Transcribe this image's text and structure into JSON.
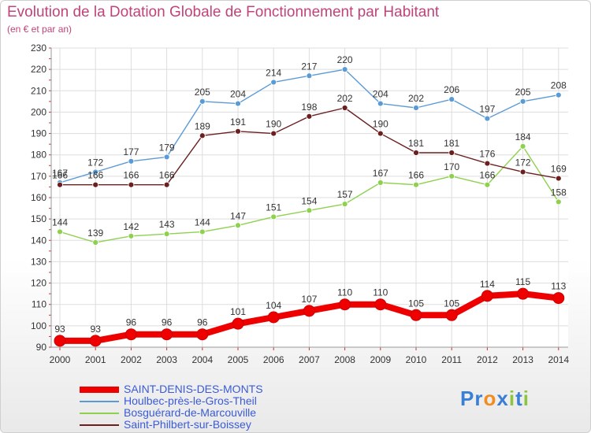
{
  "chart_data": {
    "type": "line",
    "title": "Evolution de la Dotation Globale de Fonctionnement par Habitant",
    "subtitle": "(en € et par an)",
    "categories": [
      "2000",
      "2001",
      "2002",
      "2003",
      "2004",
      "2005",
      "2006",
      "2007",
      "2008",
      "2009",
      "2010",
      "2011",
      "2012",
      "2013",
      "2014"
    ],
    "ylim": [
      90,
      230
    ],
    "yticks": [
      "90",
      "100",
      "110",
      "120",
      "130",
      "140",
      "150",
      "160",
      "170",
      "180",
      "190",
      "200",
      "210",
      "220",
      "230"
    ],
    "grid": true,
    "legend_placement": "bottom-left",
    "series": [
      {
        "name": "SAINT-DENIS-DES-MONTS",
        "color": "#ee0000",
        "values": [
          93,
          93,
          96,
          96,
          96,
          101,
          104,
          107,
          110,
          110,
          105,
          105,
          114,
          115,
          113
        ]
      },
      {
        "name": "Houlbec-près-le-Gros-Theil",
        "color": "#5b9bd5",
        "values": [
          167,
          172,
          177,
          179,
          205,
          204,
          214,
          217,
          220,
          204,
          202,
          206,
          197,
          205,
          208
        ]
      },
      {
        "name": "Bosguérard-de-Marcouville",
        "color": "#8fd14f",
        "values": [
          144,
          139,
          142,
          143,
          144,
          147,
          151,
          154,
          157,
          167,
          166,
          170,
          166,
          184,
          158
        ]
      },
      {
        "name": "Saint-Philbert-sur-Boissey",
        "color": "#6b1f1f",
        "values": [
          166,
          166,
          166,
          166,
          189,
          191,
          190,
          198,
          202,
          190,
          181,
          181,
          176,
          172,
          169
        ]
      }
    ]
  },
  "brand": {
    "letters": [
      "P",
      "r",
      "o",
      "x",
      "i",
      "t",
      "i"
    ],
    "colors": [
      "#3a7fd5",
      "#3a7fd5",
      "#f28c1e",
      "#3a7fd5",
      "#8cc63f",
      "#3a7fd5",
      "#8cc63f"
    ]
  }
}
